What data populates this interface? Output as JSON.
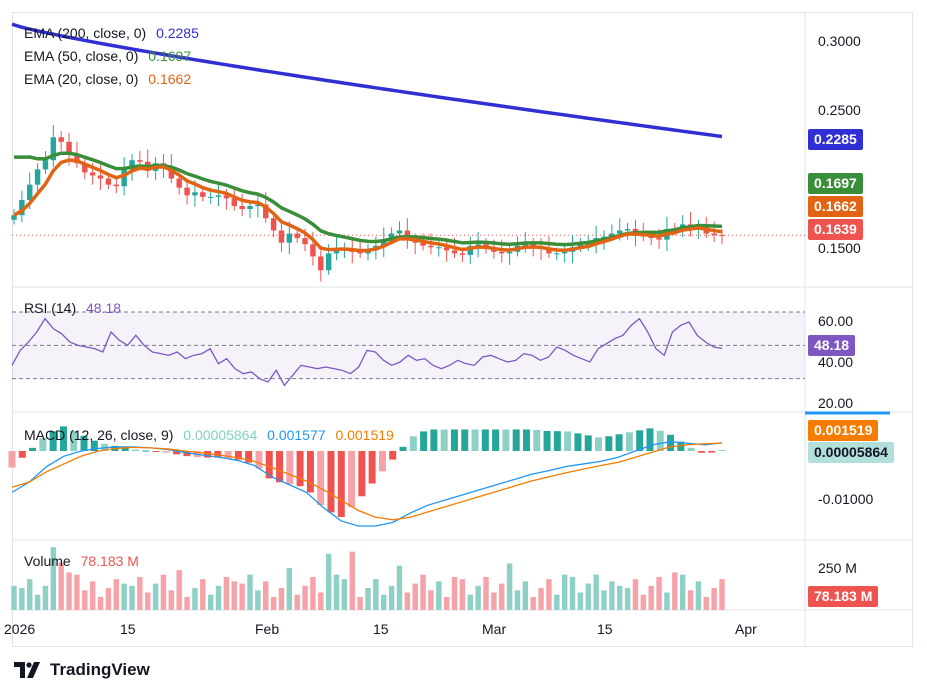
{
  "legend": {
    "ema200": {
      "label": "EMA (200, close, 0)",
      "value": "0.2285",
      "color": "#2f2fd3"
    },
    "ema50": {
      "label": "EMA (50, close, 0)",
      "value": "0.1697",
      "color": "#3a8e3a"
    },
    "ema20": {
      "label": "EMA (20, close, 0)",
      "value": "0.1662",
      "color": "#e06414"
    },
    "rsi": {
      "label": "RSI (14)",
      "value": "48.18",
      "color": "#7e57c2"
    },
    "macd": {
      "label": "MACD (12, 26, close, 9)",
      "hist": "0.00005864",
      "macd": "0.001577",
      "signal": "0.001519"
    },
    "volume": {
      "label": "Volume",
      "value": "78.183 M"
    }
  },
  "price_axis": {
    "ticks": [
      "0.3000",
      "0.2500",
      "0.1500"
    ]
  },
  "rsi_axis": {
    "ticks": [
      "60.00",
      "40.00",
      "20.00"
    ]
  },
  "macd_axis": {
    "ticks": [
      "-0.01000"
    ]
  },
  "volume_axis": {
    "ticks": [
      "250 M"
    ]
  },
  "tags": {
    "ema200": "0.2285",
    "ema50": "0.1697",
    "ema20": "0.1662",
    "price": "0.1639",
    "rsi": "48.18",
    "macd_signal": "0.001519",
    "macd_hist": "0.00005864",
    "volume": "78.183 M"
  },
  "x_axis": {
    "labels": [
      "2026",
      "15",
      "Feb",
      "15",
      "Mar",
      "15",
      "Apr"
    ]
  },
  "brand": "TradingView",
  "colors": {
    "up": "#26a69a",
    "down": "#ef5350",
    "up_vol": "#8fd0c6",
    "down_vol": "#f5a3a9",
    "ema200": "#2f2fd3",
    "ema50": "#3a8e3a",
    "ema20": "#e06414",
    "rsi": "#7e57c2",
    "macd": "#2196f3",
    "signal": "#f57c00",
    "price_tag": "#ef5350"
  },
  "chart_data": {
    "type": "candlestick",
    "price_range": [
      0.13,
      0.31
    ],
    "closes": [
      0.177,
      0.187,
      0.197,
      0.207,
      0.213,
      0.228,
      0.225,
      0.217,
      0.211,
      0.205,
      0.203,
      0.201,
      0.197,
      0.196,
      0.207,
      0.213,
      0.212,
      0.206,
      0.211,
      0.209,
      0.201,
      0.195,
      0.19,
      0.192,
      0.189,
      0.189,
      0.19,
      0.188,
      0.183,
      0.181,
      0.183,
      0.184,
      0.175,
      0.167,
      0.159,
      0.165,
      0.162,
      0.158,
      0.15,
      0.141,
      0.152,
      0.155,
      0.155,
      0.153,
      0.152,
      0.154,
      0.157,
      0.161,
      0.165,
      0.167,
      0.161,
      0.159,
      0.157,
      0.156,
      0.156,
      0.154,
      0.152,
      0.151,
      0.157,
      0.158,
      0.155,
      0.153,
      0.152,
      0.153,
      0.157,
      0.158,
      0.156,
      0.155,
      0.152,
      0.152,
      0.153,
      0.156,
      0.158,
      0.158,
      0.162,
      0.163,
      0.165,
      0.167,
      0.168,
      0.164,
      0.163,
      0.162,
      0.161,
      0.168,
      0.167,
      0.171,
      0.169,
      0.17,
      0.165,
      0.164,
      0.1639
    ],
    "ema200": [
      0.302,
      0.2285
    ],
    "ema50_final": 0.1697,
    "ema20_final": 0.1662,
    "rsi": [
      38,
      47,
      52,
      58,
      66,
      60,
      57,
      52,
      50,
      49,
      48,
      46,
      58,
      53,
      50,
      56,
      50,
      46,
      45,
      44,
      46,
      42,
      44,
      45,
      48,
      39,
      42,
      36,
      33,
      34,
      30,
      28,
      35,
      26,
      32,
      38,
      37,
      36,
      37,
      36,
      35,
      33,
      37,
      47,
      46,
      41,
      38,
      40,
      44,
      41,
      42,
      38,
      36,
      38,
      41,
      39,
      38,
      43,
      44,
      42,
      40,
      41,
      45,
      44,
      41,
      43,
      49,
      47,
      44,
      42,
      40,
      48,
      51,
      54,
      56,
      62,
      66,
      58,
      48,
      44,
      58,
      62,
      64,
      56,
      52,
      49,
      48.18
    ],
    "macd": [
      -0.008,
      -0.006,
      -0.003,
      -0.001,
      0.0,
      0.0005,
      0.0008,
      0.0008,
      0.0006,
      0.0003,
      -0.0003,
      -0.0008,
      -0.0012,
      -0.0018,
      -0.0028,
      -0.005,
      -0.0065,
      -0.008,
      -0.011,
      -0.0135,
      -0.0145,
      -0.0145,
      -0.0138,
      -0.012,
      -0.0105,
      -0.0095,
      -0.0085,
      -0.0075,
      -0.0065,
      -0.0055,
      -0.0045,
      -0.0038,
      -0.003,
      -0.0025,
      -0.002,
      -0.0012,
      0.0,
      0.0012,
      0.0018,
      0.0015,
      0.0012,
      0.001577
    ],
    "signal": [
      -0.007,
      -0.006,
      -0.004,
      -0.0025,
      -0.001,
      0.0,
      0.0005,
      0.0007,
      0.0006,
      0.0004,
      0.0,
      -0.0004,
      -0.0008,
      -0.0013,
      -0.002,
      -0.0032,
      -0.0045,
      -0.0058,
      -0.0075,
      -0.0095,
      -0.0115,
      -0.0128,
      -0.0133,
      -0.0128,
      -0.0118,
      -0.0108,
      -0.0098,
      -0.0088,
      -0.0078,
      -0.0068,
      -0.0058,
      -0.005,
      -0.0042,
      -0.0035,
      -0.0028,
      -0.0022,
      -0.0012,
      -0.0002,
      0.0008,
      0.0012,
      0.0014,
      0.001519
    ]
  }
}
